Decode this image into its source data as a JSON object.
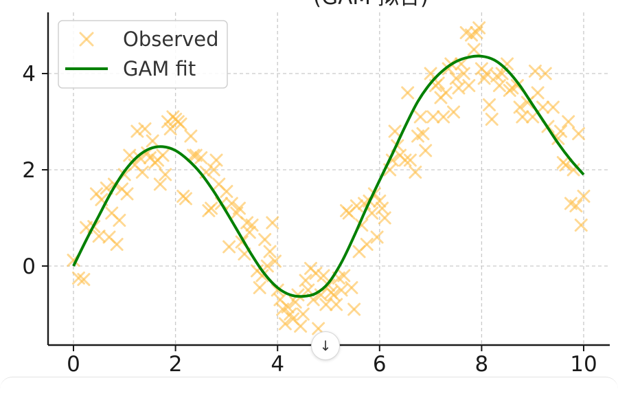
{
  "chart_data": {
    "type": "scatter+line",
    "title": "(GAM 拟合)",
    "xlim": [
      -0.5,
      10.5
    ],
    "ylim": [
      -1.65,
      5.3
    ],
    "x_ticks": [
      0,
      2,
      4,
      6,
      8,
      10
    ],
    "y_ticks": [
      0,
      2,
      4
    ],
    "grid": true,
    "legend_position": "top-left",
    "series": [
      {
        "name": "Observed",
        "kind": "scatter",
        "marker": "x",
        "color": "#FFC04D",
        "points": [
          [
            0.0,
            0.12
          ],
          [
            0.1,
            -0.25
          ],
          [
            0.2,
            -0.28
          ],
          [
            0.25,
            0.8
          ],
          [
            0.4,
            0.82
          ],
          [
            0.45,
            1.5
          ],
          [
            0.5,
            0.62
          ],
          [
            0.55,
            1.38
          ],
          [
            0.65,
            1.62
          ],
          [
            0.7,
            0.6
          ],
          [
            0.75,
            1.1
          ],
          [
            0.8,
            1.7
          ],
          [
            0.85,
            0.45
          ],
          [
            0.9,
            0.95
          ],
          [
            0.95,
            1.6
          ],
          [
            1.0,
            1.9
          ],
          [
            1.05,
            1.5
          ],
          [
            1.1,
            2.3
          ],
          [
            1.2,
            2.1
          ],
          [
            1.25,
            2.8
          ],
          [
            1.3,
            2.25
          ],
          [
            1.35,
            1.95
          ],
          [
            1.4,
            2.85
          ],
          [
            1.45,
            2.35
          ],
          [
            1.5,
            2.25
          ],
          [
            1.55,
            2.6
          ],
          [
            1.6,
            2.15
          ],
          [
            1.65,
            2.2
          ],
          [
            1.7,
            1.7
          ],
          [
            1.75,
            2.3
          ],
          [
            1.8,
            1.9
          ],
          [
            1.85,
            3.0
          ],
          [
            1.9,
            2.85
          ],
          [
            1.95,
            3.1
          ],
          [
            2.0,
            3.05
          ],
          [
            2.05,
            3.0
          ],
          [
            2.1,
            2.95
          ],
          [
            2.15,
            1.45
          ],
          [
            2.2,
            1.4
          ],
          [
            2.3,
            2.7
          ],
          [
            2.35,
            2.3
          ],
          [
            2.4,
            2.3
          ],
          [
            2.5,
            2.25
          ],
          [
            2.6,
            1.95
          ],
          [
            2.65,
            1.15
          ],
          [
            2.7,
            1.2
          ],
          [
            2.75,
            2.0
          ],
          [
            2.8,
            2.2
          ],
          [
            2.85,
            1.7
          ],
          [
            2.9,
            1.3
          ],
          [
            3.0,
            1.55
          ],
          [
            3.05,
            0.4
          ],
          [
            3.1,
            1.3
          ],
          [
            3.2,
            1.1
          ],
          [
            3.25,
            1.2
          ],
          [
            3.3,
            0.5
          ],
          [
            3.35,
            0.25
          ],
          [
            3.4,
            0.9
          ],
          [
            3.45,
            0.7
          ],
          [
            3.5,
            0.85
          ],
          [
            3.6,
            -0.1
          ],
          [
            3.65,
            -0.45
          ],
          [
            3.7,
            -0.2
          ],
          [
            3.75,
            0.55
          ],
          [
            3.8,
            0.0
          ],
          [
            3.85,
            0.3
          ],
          [
            3.9,
            0.9
          ],
          [
            3.95,
            0.1
          ],
          [
            4.0,
            -0.5
          ],
          [
            4.05,
            -0.7
          ],
          [
            4.1,
            -0.9
          ],
          [
            4.15,
            -1.2
          ],
          [
            4.2,
            -0.85
          ],
          [
            4.25,
            -1.0
          ],
          [
            4.3,
            -1.1
          ],
          [
            4.35,
            -0.75
          ],
          [
            4.4,
            -0.6
          ],
          [
            4.45,
            -1.25
          ],
          [
            4.5,
            -1.0
          ],
          [
            4.55,
            -0.3
          ],
          [
            4.6,
            -0.5
          ],
          [
            4.65,
            -0.05
          ],
          [
            4.7,
            -0.7
          ],
          [
            4.75,
            -0.15
          ],
          [
            4.8,
            -1.3
          ],
          [
            4.85,
            -0.6
          ],
          [
            4.9,
            -0.2
          ],
          [
            4.95,
            -0.8
          ],
          [
            5.0,
            -0.4
          ],
          [
            5.05,
            -0.55
          ],
          [
            5.1,
            -0.6
          ],
          [
            5.15,
            -0.8
          ],
          [
            5.2,
            -0.25
          ],
          [
            5.25,
            -0.5
          ],
          [
            5.3,
            -0.2
          ],
          [
            5.35,
            1.15
          ],
          [
            5.4,
            1.1
          ],
          [
            5.45,
            -0.45
          ],
          [
            5.5,
            -0.9
          ],
          [
            5.55,
            1.25
          ],
          [
            5.6,
            0.3
          ],
          [
            5.65,
            0.85
          ],
          [
            5.7,
            1.3
          ],
          [
            5.75,
            0.45
          ],
          [
            5.8,
            1.35
          ],
          [
            5.85,
            1.1
          ],
          [
            5.9,
            1.5
          ],
          [
            5.95,
            0.6
          ],
          [
            6.0,
            1.35
          ],
          [
            6.05,
            1.2
          ],
          [
            6.1,
            1.0
          ],
          [
            6.2,
            2.0
          ],
          [
            6.25,
            2.2
          ],
          [
            6.3,
            2.8
          ],
          [
            6.35,
            2.5
          ],
          [
            6.4,
            2.3
          ],
          [
            6.5,
            2.2
          ],
          [
            6.55,
            3.6
          ],
          [
            6.6,
            2.2
          ],
          [
            6.7,
            1.95
          ],
          [
            6.75,
            2.7
          ],
          [
            6.8,
            3.1
          ],
          [
            6.85,
            2.75
          ],
          [
            6.9,
            2.4
          ],
          [
            7.0,
            4.0
          ],
          [
            7.05,
            3.1
          ],
          [
            7.1,
            3.75
          ],
          [
            7.15,
            3.8
          ],
          [
            7.2,
            3.5
          ],
          [
            7.25,
            3.1
          ],
          [
            7.3,
            3.6
          ],
          [
            7.35,
            4.1
          ],
          [
            7.4,
            4.2
          ],
          [
            7.45,
            3.2
          ],
          [
            7.5,
            3.9
          ],
          [
            7.55,
            3.7
          ],
          [
            7.6,
            4.2
          ],
          [
            7.65,
            4.0
          ],
          [
            7.7,
            4.85
          ],
          [
            7.75,
            3.75
          ],
          [
            7.8,
            4.8
          ],
          [
            7.85,
            4.5
          ],
          [
            7.9,
            4.85
          ],
          [
            7.95,
            4.95
          ],
          [
            8.0,
            4.1
          ],
          [
            8.05,
            3.9
          ],
          [
            8.1,
            4.0
          ],
          [
            8.15,
            3.35
          ],
          [
            8.2,
            3.05
          ],
          [
            8.3,
            3.95
          ],
          [
            8.35,
            3.75
          ],
          [
            8.4,
            4.0
          ],
          [
            8.5,
            4.2
          ],
          [
            8.55,
            3.65
          ],
          [
            8.6,
            3.7
          ],
          [
            8.7,
            3.75
          ],
          [
            8.75,
            3.3
          ],
          [
            8.8,
            3.1
          ],
          [
            8.9,
            3.4
          ],
          [
            9.0,
            3.1
          ],
          [
            9.05,
            4.05
          ],
          [
            9.1,
            3.6
          ],
          [
            9.2,
            3.3
          ],
          [
            9.25,
            4.0
          ],
          [
            9.3,
            2.9
          ],
          [
            9.4,
            3.3
          ],
          [
            9.5,
            2.65
          ],
          [
            9.55,
            2.8
          ],
          [
            9.6,
            2.15
          ],
          [
            9.65,
            2.1
          ],
          [
            9.7,
            3.0
          ],
          [
            9.75,
            1.3
          ],
          [
            9.8,
            2.0
          ],
          [
            9.85,
            1.25
          ],
          [
            9.9,
            2.75
          ],
          [
            9.95,
            0.85
          ],
          [
            10.0,
            1.45
          ]
        ]
      },
      {
        "name": "GAM fit",
        "kind": "line",
        "color": "#008000",
        "points": [
          [
            0.0,
            0.0
          ],
          [
            0.25,
            0.54
          ],
          [
            0.5,
            1.05
          ],
          [
            0.75,
            1.55
          ],
          [
            1.0,
            1.97
          ],
          [
            1.25,
            2.27
          ],
          [
            1.5,
            2.44
          ],
          [
            1.75,
            2.48
          ],
          [
            2.0,
            2.4
          ],
          [
            2.25,
            2.2
          ],
          [
            2.5,
            1.92
          ],
          [
            2.75,
            1.55
          ],
          [
            3.0,
            1.12
          ],
          [
            3.25,
            0.67
          ],
          [
            3.5,
            0.22
          ],
          [
            3.75,
            -0.17
          ],
          [
            4.0,
            -0.45
          ],
          [
            4.25,
            -0.6
          ],
          [
            4.5,
            -0.63
          ],
          [
            4.75,
            -0.57
          ],
          [
            5.0,
            -0.35
          ],
          [
            5.25,
            0.07
          ],
          [
            5.5,
            0.62
          ],
          [
            5.75,
            1.22
          ],
          [
            6.0,
            1.78
          ],
          [
            6.25,
            2.33
          ],
          [
            6.5,
            2.9
          ],
          [
            6.75,
            3.42
          ],
          [
            7.0,
            3.8
          ],
          [
            7.25,
            4.07
          ],
          [
            7.5,
            4.25
          ],
          [
            7.75,
            4.34
          ],
          [
            8.0,
            4.36
          ],
          [
            8.25,
            4.28
          ],
          [
            8.5,
            4.07
          ],
          [
            8.75,
            3.75
          ],
          [
            9.0,
            3.35
          ],
          [
            9.25,
            2.95
          ],
          [
            9.5,
            2.55
          ],
          [
            9.75,
            2.2
          ],
          [
            10.0,
            1.9
          ]
        ]
      }
    ]
  },
  "ui": {
    "scroll_button_icon": "arrow-down-icon",
    "scroll_button_glyph": "↓"
  }
}
